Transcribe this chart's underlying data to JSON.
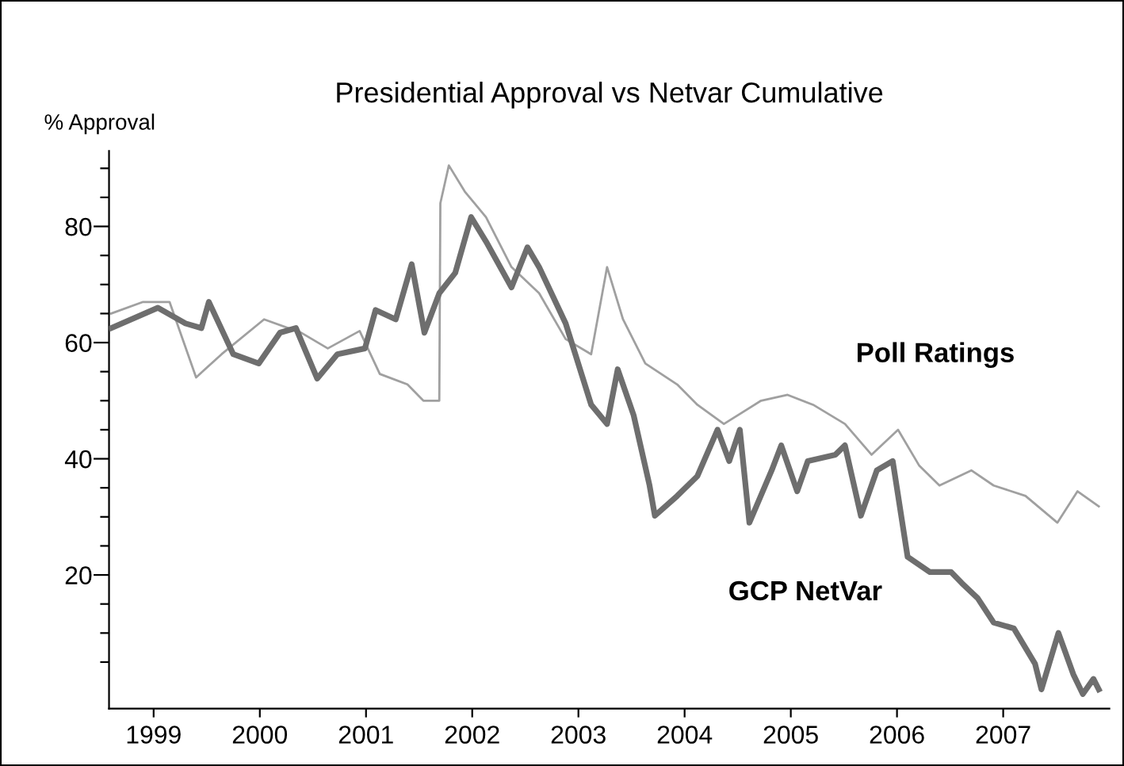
{
  "chart_data": {
    "type": "line",
    "title": "Presidential Approval vs Netvar Cumulative",
    "ylabel": "% Approval",
    "xlim": [
      1998.58,
      2008.0
    ],
    "ylim": [
      -3,
      93
    ],
    "xticks": [
      {
        "value": 1999,
        "label": "1999"
      },
      {
        "value": 2000,
        "label": "2000"
      },
      {
        "value": 2001,
        "label": "2001"
      },
      {
        "value": 2002,
        "label": "2002"
      },
      {
        "value": 2003,
        "label": "2003"
      },
      {
        "value": 2004,
        "label": "2004"
      },
      {
        "value": 2005,
        "label": "2005"
      },
      {
        "value": 2006,
        "label": "2006"
      },
      {
        "value": 2007,
        "label": "2007"
      }
    ],
    "yticks": [
      {
        "value": 5,
        "label": null
      },
      {
        "value": 10,
        "label": null
      },
      {
        "value": 15,
        "label": null
      },
      20,
      {
        "value": 25,
        "label": null
      },
      {
        "value": 30,
        "label": null
      },
      {
        "value": 35,
        "label": null
      },
      40,
      {
        "value": 45,
        "label": null
      },
      {
        "value": 50,
        "label": null
      },
      {
        "value": 55,
        "label": null
      },
      60,
      {
        "value": 65,
        "label": null
      },
      {
        "value": 70,
        "label": null
      },
      {
        "value": 75,
        "label": null
      },
      80,
      {
        "value": 85,
        "label": null
      },
      {
        "value": 90,
        "label": null
      }
    ],
    "grid": false,
    "legend": false,
    "marker": "none",
    "line_style": "solid",
    "series": [
      {
        "name": "Poll Ratings",
        "color": "#a0a0a0",
        "x": [
          1998.6,
          1998.9,
          1999.15,
          1999.4,
          1999.64,
          2000.04,
          2000.39,
          2000.64,
          2000.94,
          2001.13,
          2001.39,
          2001.54,
          2001.69,
          2001.7,
          2001.78,
          2001.93,
          2002.13,
          2002.37,
          2002.63,
          2002.88,
          2003.12,
          2003.27,
          2003.42,
          2003.63,
          2003.93,
          2004.12,
          2004.37,
          2004.72,
          2004.97,
          2005.21,
          2005.51,
          2005.76,
          2006.01,
          2006.21,
          2006.4,
          2006.7,
          2006.91,
          2007.21,
          2007.51,
          2007.7,
          2007.9
        ],
        "values": [
          65,
          67,
          67,
          54,
          58,
          64,
          61.7,
          59,
          62,
          54.6,
          52.8,
          50,
          50,
          84,
          90.5,
          86,
          81.6,
          73,
          68.5,
          60.6,
          58,
          73,
          64,
          56.4,
          52.8,
          49.3,
          46,
          50,
          51,
          49.3,
          46,
          40.7,
          45,
          38.8,
          35.4,
          38,
          35.4,
          33.6,
          29,
          34.4,
          31.8
        ]
      },
      {
        "name": "GCP NetVar",
        "color": "#6e6e6e",
        "x": [
          1998.6,
          1999.04,
          1999.3,
          1999.45,
          1999.52,
          1999.75,
          1999.99,
          2000.19,
          2000.34,
          2000.54,
          2000.73,
          2000.99,
          2001.09,
          2001.28,
          2001.43,
          2001.55,
          2001.69,
          2001.84,
          2001.99,
          2002.13,
          2002.37,
          2002.52,
          2002.63,
          2002.88,
          2003.12,
          2003.27,
          2003.37,
          2003.52,
          2003.67,
          2003.72,
          2003.93,
          2004.12,
          2004.31,
          2004.42,
          2004.52,
          2004.61,
          2004.82,
          2004.91,
          2005.06,
          2005.16,
          2005.42,
          2005.51,
          2005.66,
          2005.81,
          2005.96,
          2006.1,
          2006.31,
          2006.51,
          2006.61,
          2006.76,
          2006.91,
          2007.1,
          2007.3,
          2007.36,
          2007.52,
          2007.66,
          2007.75,
          2007.85,
          2007.9
        ],
        "values": [
          62.5,
          66,
          63.3,
          62.5,
          67,
          58,
          56.4,
          61.7,
          62.5,
          53.8,
          58,
          59,
          65.6,
          64,
          73.5,
          61.7,
          68.5,
          72,
          81.6,
          77.4,
          69.5,
          76.4,
          73,
          63.3,
          49.3,
          46,
          55.4,
          47.5,
          35.4,
          30.2,
          33.6,
          37,
          45,
          39.6,
          45,
          29,
          38,
          42.3,
          34.4,
          39.6,
          40.7,
          42.3,
          30.2,
          38,
          39.6,
          23.1,
          20.5,
          20.5,
          18.6,
          16,
          11.8,
          10.8,
          4.7,
          0.3,
          10,
          2.9,
          -0.5,
          2.1,
          0.3
        ]
      }
    ]
  }
}
